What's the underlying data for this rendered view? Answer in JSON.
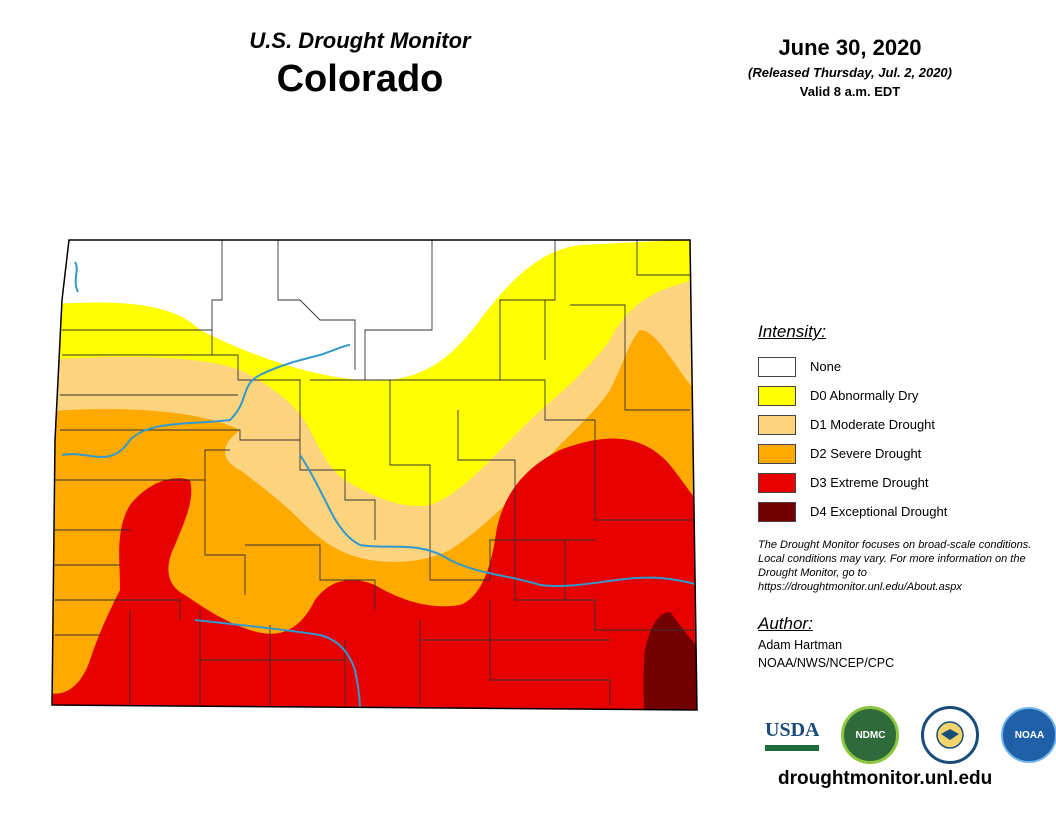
{
  "header": {
    "monitor_title": "U.S. Drought Monitor",
    "state": "Colorado",
    "date": "June 30, 2020",
    "released": "(Released Thursday, Jul. 2, 2020)",
    "valid": "Valid 8 a.m. EDT"
  },
  "legend": {
    "title": "Intensity:",
    "items": [
      {
        "label": "None",
        "color": "#ffffff"
      },
      {
        "label": "D0 Abnormally Dry",
        "color": "#ffff00"
      },
      {
        "label": "D1 Moderate Drought",
        "color": "#fcd37f"
      },
      {
        "label": "D2 Severe Drought",
        "color": "#ffaa00"
      },
      {
        "label": "D3 Extreme Drought",
        "color": "#e60000"
      },
      {
        "label": "D4 Exceptional Drought",
        "color": "#730000"
      }
    ]
  },
  "note": "The Drought Monitor focuses on broad-scale conditions. Local conditions may vary. For more information on the Drought Monitor, go to https://droughtmonitor.unl.edu/About.aspx",
  "author": {
    "title": "Author:",
    "name": "Adam Hartman",
    "org": "NOAA/NWS/NCEP/CPC"
  },
  "logos": {
    "usda": "USDA",
    "ndmc": "NDMC",
    "noaa": "NOAA"
  },
  "website": "droughtmonitor.unl.edu",
  "colors": {
    "none": "#ffffff",
    "d0": "#ffff00",
    "d1": "#fcd37f",
    "d2": "#ffaa00",
    "d3": "#e60000",
    "d4": "#730000",
    "river": "#3399cc"
  }
}
